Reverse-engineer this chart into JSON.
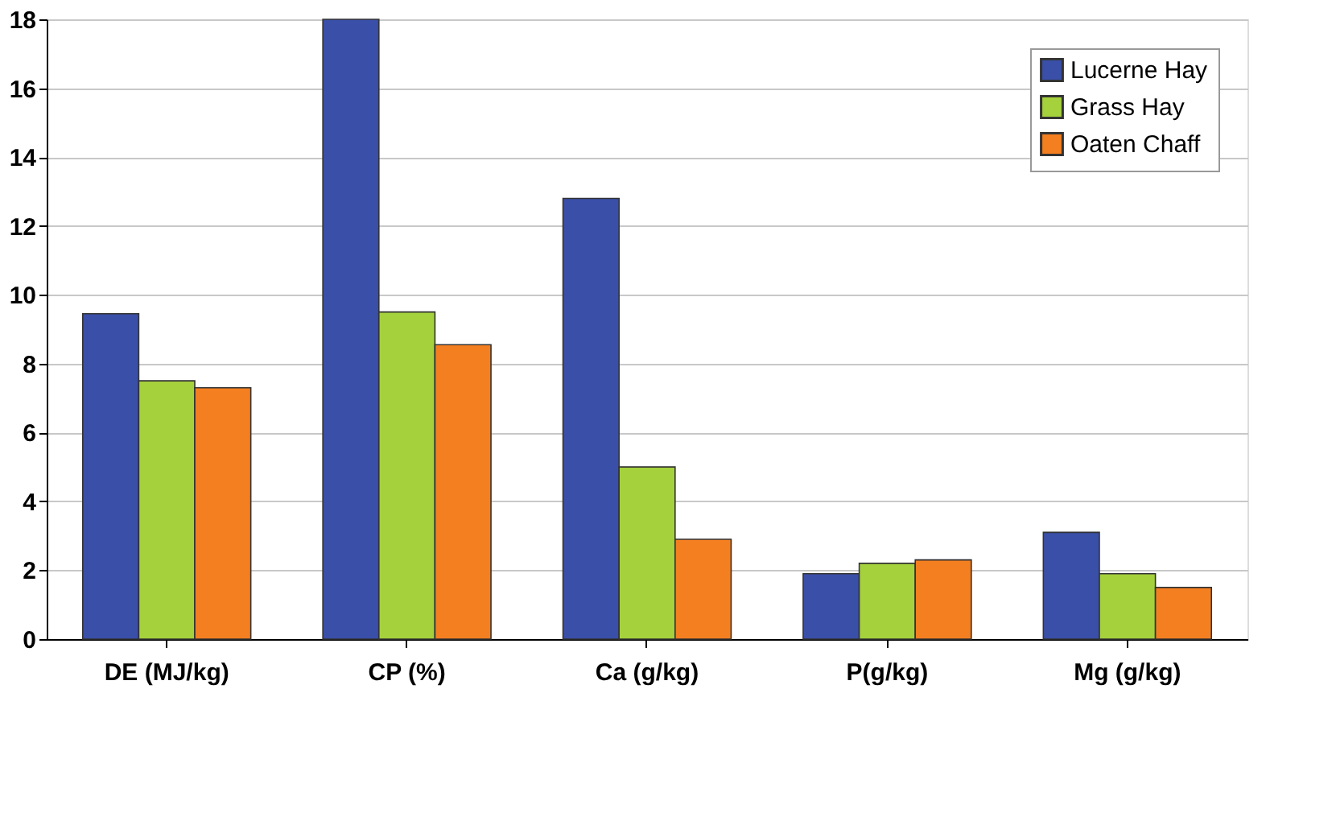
{
  "chart_data": {
    "type": "bar",
    "categories": [
      "DE (MJ/kg)",
      "CP (%)",
      "Ca (g/kg)",
      "P(g/kg)",
      "Mg (g/kg)"
    ],
    "series": [
      {
        "name": "Lucerne Hay",
        "color": "#3a4fa8",
        "values": [
          9.45,
          18,
          12.8,
          1.9,
          3.1
        ]
      },
      {
        "name": "Grass Hay",
        "color": "#a5d13c",
        "values": [
          7.5,
          9.5,
          5.0,
          2.2,
          1.9
        ]
      },
      {
        "name": "Oaten Chaff",
        "color": "#f47f20",
        "values": [
          7.3,
          8.55,
          2.9,
          2.3,
          1.5
        ]
      }
    ],
    "ylim": [
      0,
      18
    ],
    "yticks": [
      0,
      2,
      4,
      6,
      8,
      10,
      12,
      14,
      16,
      18
    ],
    "grid": "y",
    "legend": "top right"
  }
}
